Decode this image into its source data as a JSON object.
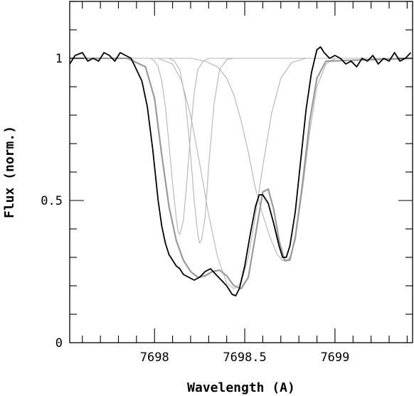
{
  "chart_data": {
    "type": "line",
    "title": "",
    "xlabel": "Wavelength (A)",
    "ylabel": "Flux (norm.)",
    "xlim": [
      7697.53,
      7699.43
    ],
    "ylim": [
      0,
      1.2
    ],
    "x_ticks": [
      {
        "value": 7698,
        "label": "7698"
      },
      {
        "value": 7698.5,
        "label": "7698.5"
      },
      {
        "value": 7699,
        "label": "7699"
      }
    ],
    "y_ticks": [
      {
        "value": 0,
        "label": "0"
      },
      {
        "value": 0.5,
        "label": "0.5"
      },
      {
        "value": 1,
        "label": "1"
      }
    ],
    "grid": false,
    "series": [
      {
        "role": "observed",
        "color": "#000000",
        "x": [
          7697.53,
          7697.56,
          7697.6,
          7697.63,
          7697.66,
          7697.69,
          7697.72,
          7697.75,
          7697.78,
          7697.81,
          7697.84,
          7697.87,
          7697.9,
          7697.93,
          7697.96,
          7697.99,
          7698.02,
          7698.04,
          7698.06,
          7698.08,
          7698.1,
          7698.12,
          7698.14,
          7698.16,
          7698.19,
          7698.22,
          7698.25,
          7698.28,
          7698.31,
          7698.34,
          7698.37,
          7698.4,
          7698.43,
          7698.45,
          7698.47,
          7698.5,
          7698.53,
          7698.56,
          7698.58,
          7698.6,
          7698.63,
          7698.66,
          7698.69,
          7698.71,
          7698.73,
          7698.75,
          7698.78,
          7698.81,
          7698.84,
          7698.87,
          7698.9,
          7698.92,
          7698.94,
          7698.97,
          7699.0,
          7699.03,
          7699.06,
          7699.09,
          7699.12,
          7699.15,
          7699.18,
          7699.21,
          7699.24,
          7699.27,
          7699.3,
          7699.33,
          7699.36,
          7699.39,
          7699.42
        ],
        "y": [
          0.98,
          1.01,
          1.02,
          0.99,
          1.0,
          0.99,
          1.02,
          1.01,
          0.99,
          1.02,
          1.01,
          1.0,
          0.96,
          0.92,
          0.83,
          0.68,
          0.5,
          0.41,
          0.35,
          0.31,
          0.29,
          0.27,
          0.26,
          0.24,
          0.23,
          0.22,
          0.23,
          0.25,
          0.26,
          0.24,
          0.22,
          0.2,
          0.17,
          0.165,
          0.19,
          0.27,
          0.38,
          0.48,
          0.52,
          0.52,
          0.49,
          0.42,
          0.34,
          0.3,
          0.3,
          0.34,
          0.46,
          0.64,
          0.82,
          0.95,
          1.03,
          1.04,
          1.02,
          1.0,
          1.01,
          1.0,
          0.98,
          0.99,
          0.97,
          1.0,
          0.99,
          1.01,
          0.98,
          1.0,
          0.99,
          1.02,
          0.99,
          1.0,
          1.02
        ]
      },
      {
        "role": "model-total",
        "color": "#9a9a9a",
        "x": [
          7697.53,
          7697.85,
          7697.95,
          7698.0,
          7698.04,
          7698.08,
          7698.12,
          7698.16,
          7698.2,
          7698.24,
          7698.28,
          7698.32,
          7698.36,
          7698.4,
          7698.44,
          7698.48,
          7698.52,
          7698.56,
          7698.6,
          7698.63,
          7698.66,
          7698.69,
          7698.72,
          7698.75,
          7698.78,
          7698.82,
          7698.86,
          7698.9,
          7698.95,
          7699.43
        ],
        "y": [
          1.0,
          1.0,
          0.97,
          0.86,
          0.66,
          0.48,
          0.36,
          0.29,
          0.25,
          0.23,
          0.235,
          0.25,
          0.255,
          0.235,
          0.2,
          0.19,
          0.23,
          0.38,
          0.53,
          0.54,
          0.47,
          0.36,
          0.29,
          0.29,
          0.37,
          0.56,
          0.78,
          0.93,
          0.99,
          1.0
        ]
      },
      {
        "role": "component-1",
        "color": "#b4b4b4",
        "x": [
          7697.53,
          7697.98,
          7698.0,
          7698.02,
          7698.04,
          7698.06,
          7698.08,
          7698.1,
          7698.12,
          7698.13,
          7698.14,
          7698.16,
          7698.18,
          7698.2,
          7698.22,
          7698.24,
          7698.27,
          7698.3,
          7699.43
        ],
        "y": [
          1.0,
          1.0,
          0.99,
          0.97,
          0.92,
          0.83,
          0.7,
          0.56,
          0.44,
          0.39,
          0.38,
          0.43,
          0.57,
          0.74,
          0.88,
          0.96,
          0.99,
          1.0,
          1.0
        ]
      },
      {
        "role": "component-2",
        "color": "#b4b4b4",
        "x": [
          7697.53,
          7698.08,
          7698.11,
          7698.14,
          7698.17,
          7698.2,
          7698.22,
          7698.24,
          7698.25,
          7698.26,
          7698.28,
          7698.3,
          7698.33,
          7698.36,
          7698.4,
          7698.44,
          7699.43
        ],
        "y": [
          1.0,
          1.0,
          0.99,
          0.96,
          0.86,
          0.66,
          0.5,
          0.38,
          0.35,
          0.36,
          0.44,
          0.62,
          0.84,
          0.96,
          0.995,
          1.0,
          1.0
        ]
      },
      {
        "role": "component-3",
        "color": "#b4b4b4",
        "x": [
          7697.53,
          7698.02,
          7698.1,
          7698.15,
          7698.2,
          7698.25,
          7698.3,
          7698.35,
          7698.4,
          7698.44,
          7698.48,
          7698.52,
          7698.56,
          7698.6,
          7698.65,
          7698.7,
          7698.76,
          7698.84,
          7699.43
        ],
        "y": [
          1.0,
          1.0,
          0.98,
          0.92,
          0.8,
          0.63,
          0.45,
          0.3,
          0.21,
          0.19,
          0.21,
          0.3,
          0.45,
          0.62,
          0.81,
          0.93,
          0.985,
          1.0,
          1.0
        ]
      },
      {
        "role": "component-4",
        "color": "#b4b4b4",
        "x": [
          7697.53,
          7698.2,
          7698.28,
          7698.35,
          7698.4,
          7698.44,
          7698.48,
          7698.52,
          7698.56,
          7698.6,
          7698.64,
          7698.68,
          7698.71,
          7698.73,
          7698.75,
          7698.78,
          7698.82,
          7698.86,
          7698.9,
          7698.95,
          7699.0,
          7699.43
        ],
        "y": [
          1.0,
          1.0,
          0.99,
          0.97,
          0.93,
          0.87,
          0.78,
          0.67,
          0.54,
          0.45,
          0.37,
          0.31,
          0.29,
          0.285,
          0.3,
          0.36,
          0.54,
          0.74,
          0.9,
          0.98,
          1.0,
          1.0
        ]
      }
    ]
  }
}
